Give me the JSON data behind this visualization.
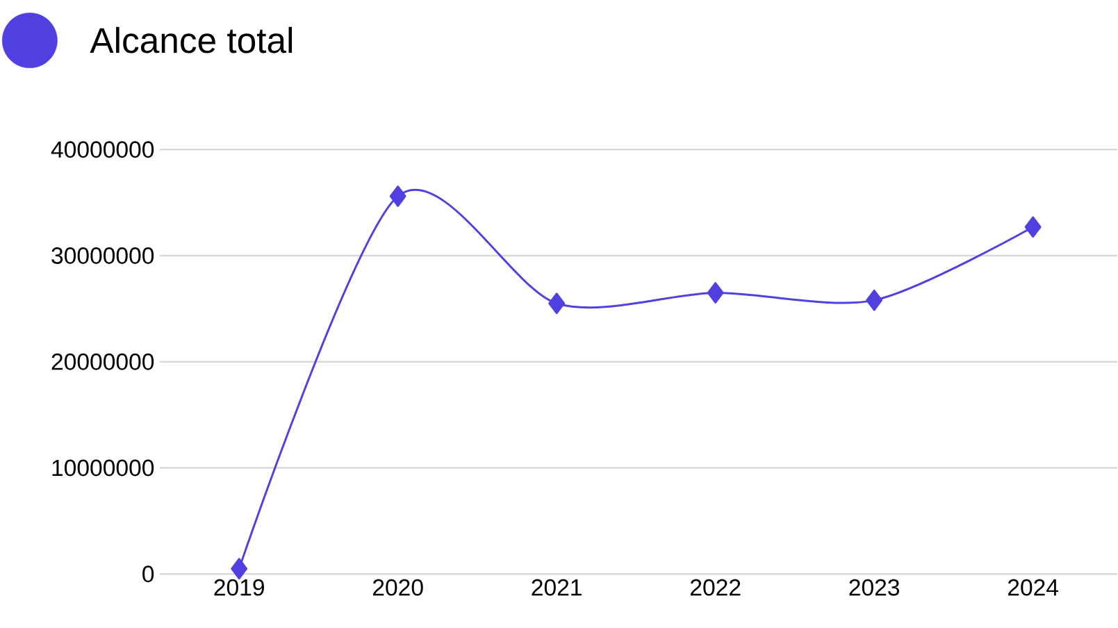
{
  "chart_data": {
    "type": "line",
    "categories": [
      "2019",
      "2020",
      "2021",
      "2022",
      "2023",
      "2024"
    ],
    "series": [
      {
        "name": "Alcance total",
        "color": "#5140e0",
        "values": [
          500000,
          35600000,
          25500000,
          26500000,
          25800000,
          32700000
        ]
      }
    ],
    "ylim": [
      0,
      40000000
    ],
    "yticks": [
      0,
      10000000,
      20000000,
      30000000,
      40000000
    ],
    "grid": "y",
    "legend": "top left",
    "marker": "diamond",
    "line_style": "solid"
  }
}
